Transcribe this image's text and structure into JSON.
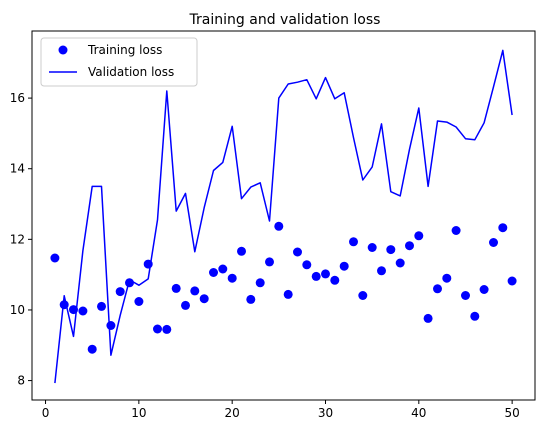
{
  "chart_data": {
    "type": "line",
    "title": "Training and validation loss",
    "xlabel": "",
    "ylabel": "",
    "xlim": [
      -1.45,
      52.45
    ],
    "ylim": [
      7.45,
      17.9
    ],
    "xticks": [
      0,
      10,
      20,
      30,
      40,
      50
    ],
    "yticks": [
      8,
      10,
      12,
      14,
      16
    ],
    "grid": false,
    "legend_position": "top-left",
    "series": [
      {
        "name": "Training loss",
        "kind": "scatter",
        "marker": "circle",
        "color": "#0000ff",
        "x": [
          1,
          2,
          3,
          4,
          5,
          6,
          7,
          8,
          9,
          10,
          11,
          12,
          13,
          14,
          15,
          16,
          17,
          18,
          19,
          20,
          21,
          22,
          23,
          24,
          25,
          26,
          27,
          28,
          29,
          30,
          31,
          32,
          33,
          34,
          35,
          36,
          37,
          38,
          39,
          40,
          41,
          42,
          43,
          44,
          45,
          46,
          47,
          48,
          49,
          50
        ],
        "values": [
          11.47,
          10.15,
          10.01,
          9.97,
          8.89,
          10.1,
          9.56,
          10.52,
          10.77,
          10.24,
          11.3,
          9.46,
          9.45,
          10.61,
          10.13,
          10.54,
          10.32,
          11.06,
          11.16,
          10.9,
          11.66,
          10.3,
          10.77,
          11.36,
          12.37,
          10.44,
          11.64,
          11.28,
          10.95,
          11.02,
          10.84,
          11.24,
          11.93,
          10.41,
          11.77,
          11.11,
          11.71,
          11.33,
          11.82,
          12.1,
          9.76,
          10.6,
          10.9,
          12.25,
          10.41,
          9.82,
          10.58,
          11.91,
          12.33,
          10.82
        ]
      },
      {
        "name": "Validation loss",
        "kind": "line",
        "color": "#0000ff",
        "x": [
          1,
          2,
          3,
          4,
          5,
          6,
          7,
          8,
          9,
          10,
          11,
          12,
          13,
          14,
          15,
          16,
          17,
          18,
          19,
          20,
          21,
          22,
          23,
          24,
          25,
          26,
          27,
          28,
          29,
          30,
          31,
          32,
          33,
          34,
          35,
          36,
          37,
          38,
          39,
          40,
          41,
          42,
          43,
          44,
          45,
          46,
          47,
          48,
          49,
          50
        ],
        "values": [
          7.93,
          10.4,
          9.25,
          11.68,
          13.5,
          13.5,
          8.72,
          9.85,
          10.85,
          10.7,
          10.88,
          12.55,
          16.2,
          12.8,
          13.3,
          11.65,
          12.9,
          13.95,
          14.18,
          15.2,
          13.15,
          13.48,
          13.6,
          12.52,
          16.0,
          16.4,
          16.45,
          16.52,
          15.98,
          16.58,
          15.98,
          16.15,
          14.88,
          13.68,
          14.05,
          15.27,
          13.35,
          13.23,
          14.55,
          15.72,
          13.5,
          15.35,
          15.32,
          15.18,
          14.85,
          14.82,
          15.3,
          16.32,
          17.35,
          15.52
        ]
      }
    ]
  }
}
